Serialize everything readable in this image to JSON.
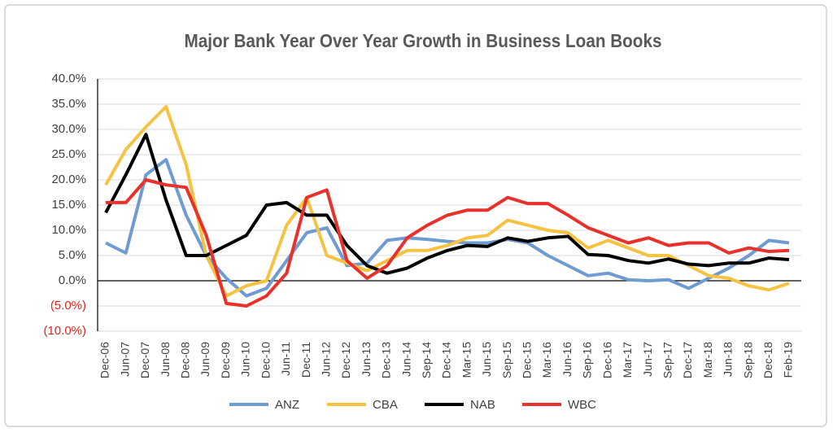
{
  "chart_data": {
    "type": "line",
    "title": "Major Bank Year Over Year Growth in Business Loan Books",
    "categories": [
      "Dec-06",
      "Jun-07",
      "Dec-07",
      "Jun-08",
      "Dec-08",
      "Jun-09",
      "Dec-09",
      "Jun-10",
      "Dec-10",
      "Jun-11",
      "Dec-11",
      "Jun-12",
      "Dec-12",
      "Jun-13",
      "Dec-13",
      "Jun-14",
      "Sep-14",
      "Dec-14",
      "Mar-15",
      "Jun-15",
      "Sep-15",
      "Dec-15",
      "Mar-16",
      "Jun-16",
      "Sep-16",
      "Dec-16",
      "Mar-17",
      "Jun-17",
      "Sep-17",
      "Dec-17",
      "Mar-18",
      "Jun-18",
      "Sep-18",
      "Dec-18",
      "Feb-19"
    ],
    "series": [
      {
        "name": "ANZ",
        "color": "#6e9bd1",
        "values": [
          7.5,
          5.5,
          21,
          24,
          13,
          5,
          0.5,
          -3,
          -1.5,
          4,
          9.5,
          10.5,
          3,
          3.5,
          8,
          8.5,
          8.2,
          7.8,
          7.5,
          7.5,
          8.2,
          7.5,
          5,
          3,
          1,
          1.5,
          0.2,
          0,
          0.2,
          -1.5,
          0.5,
          2.5,
          5,
          8,
          7.5
        ]
      },
      {
        "name": "CBA",
        "color": "#f5c242",
        "values": [
          19,
          26,
          30.5,
          34.5,
          23,
          5,
          -3,
          -1,
          0,
          11,
          16.5,
          5,
          3.5,
          2,
          4,
          6,
          6,
          7,
          8.5,
          9,
          12,
          11,
          10,
          9.5,
          6.5,
          8,
          6.5,
          5,
          5,
          3,
          1,
          0.5,
          -1,
          -1.8,
          -0.5
        ]
      },
      {
        "name": "NAB",
        "color": "#000000",
        "values": [
          13.5,
          21,
          29,
          16,
          5,
          5,
          7,
          9,
          15,
          15.5,
          13,
          13,
          7,
          3,
          1.5,
          2.5,
          4.5,
          6,
          7,
          6.8,
          8.5,
          7.8,
          8.5,
          8.8,
          5.2,
          5,
          4,
          3.5,
          4.3,
          3.3,
          3,
          3.5,
          3.5,
          4.5,
          4.2
        ]
      },
      {
        "name": "WBC",
        "color": "#e8312a",
        "values": [
          15.5,
          15.5,
          20,
          19,
          18.5,
          9,
          -4.5,
          -5,
          -3,
          1.5,
          16.5,
          18,
          4,
          0.5,
          3,
          8.5,
          11,
          13,
          14,
          14,
          16.5,
          15.3,
          15.3,
          13,
          10.5,
          9,
          7.5,
          8.5,
          7,
          7.5,
          7.5,
          5.5,
          6.5,
          5.8,
          6
        ]
      }
    ],
    "ylim": [
      -10,
      40
    ],
    "yticks": [
      {
        "value": -10,
        "label": "(10.0%)"
      },
      {
        "value": -5,
        "label": "(5.0%)"
      },
      {
        "value": 0,
        "label": "0.0%"
      },
      {
        "value": 5,
        "label": "5.0%"
      },
      {
        "value": 10,
        "label": "10.0%"
      },
      {
        "value": 15,
        "label": "15.0%"
      },
      {
        "value": 20,
        "label": "20.0%"
      },
      {
        "value": 25,
        "label": "25.0%"
      },
      {
        "value": 30,
        "label": "30.0%"
      },
      {
        "value": 35,
        "label": "35.0%"
      },
      {
        "value": 40,
        "label": "40.0%"
      }
    ],
    "grid": true,
    "legend": "bottom"
  }
}
